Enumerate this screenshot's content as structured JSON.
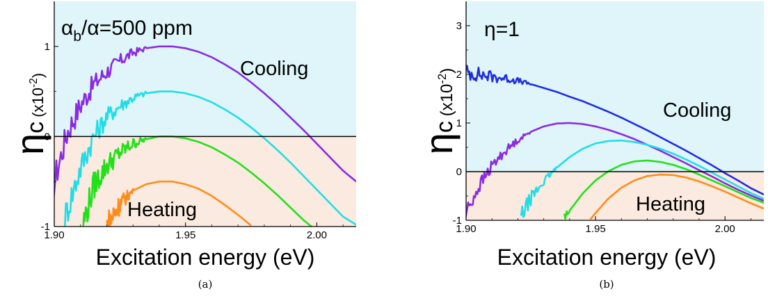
{
  "chart_data": [
    {
      "panel": "a",
      "type": "line",
      "caption": "(a)",
      "annotation": {
        "base": "α",
        "sub": "b",
        "rest": "/α=500 ppm"
      },
      "xlabel": "Excitation energy (eV)",
      "ylabel": {
        "main": "η",
        "sub": "c",
        "unit_prefix": " (x10",
        "unit_exp": "-2",
        "unit_suffix": ")"
      },
      "xlim": [
        1.9,
        2.015
      ],
      "ylim": [
        -1,
        1.5
      ],
      "xticks": [
        "1.90",
        "1.95",
        "2.00"
      ],
      "yticks": [
        "-1",
        "0",
        "1"
      ],
      "regions": {
        "cooling": "Cooling",
        "heating": "Heating"
      },
      "colors": {
        "cooling_bg": "#dff5f9",
        "heating_bg": "#fbeadf"
      },
      "series": [
        {
          "color": "#8a2be2",
          "noise_below": 1.935,
          "x": [
            1.899,
            1.905,
            1.91,
            1.915,
            1.92,
            1.925,
            1.93,
            1.935,
            1.94,
            1.945,
            1.95,
            1.955,
            1.96,
            1.965,
            1.97,
            1.975,
            1.98,
            1.985,
            1.99,
            1.995,
            2.0,
            2.005,
            2.01,
            2.015
          ],
          "y": [
            -0.6,
            0.05,
            0.35,
            0.58,
            0.72,
            0.84,
            0.93,
            0.98,
            1.0,
            1.0,
            0.98,
            0.94,
            0.88,
            0.8,
            0.71,
            0.6,
            0.48,
            0.35,
            0.21,
            0.07,
            -0.08,
            -0.23,
            -0.38,
            -0.5
          ]
        },
        {
          "color": "#22dde6",
          "noise_below": 1.935,
          "x": [
            1.904,
            1.91,
            1.915,
            1.92,
            1.925,
            1.93,
            1.935,
            1.94,
            1.945,
            1.95,
            1.955,
            1.96,
            1.965,
            1.97,
            1.975,
            1.98,
            1.985,
            1.99,
            1.995,
            2.0,
            2.005,
            2.01,
            2.015
          ],
          "y": [
            -0.9,
            -0.35,
            0.0,
            0.22,
            0.34,
            0.43,
            0.48,
            0.5,
            0.5,
            0.48,
            0.44,
            0.38,
            0.3,
            0.21,
            0.1,
            -0.02,
            -0.15,
            -0.29,
            -0.44,
            -0.59,
            -0.74,
            -0.89,
            -0.98
          ]
        },
        {
          "color": "#22e01a",
          "noise_below": 1.935,
          "x": [
            1.911,
            1.915,
            1.92,
            1.925,
            1.93,
            1.935,
            1.94,
            1.945,
            1.95,
            1.955,
            1.96,
            1.965,
            1.97,
            1.975,
            1.98,
            1.985,
            1.99,
            1.995,
            1.998
          ],
          "y": [
            -0.97,
            -0.55,
            -0.32,
            -0.18,
            -0.08,
            -0.03,
            0.0,
            0.0,
            -0.02,
            -0.06,
            -0.12,
            -0.2,
            -0.29,
            -0.4,
            -0.52,
            -0.65,
            -0.79,
            -0.93,
            -1.0
          ]
        },
        {
          "color": "#ff8c1a",
          "noise_below": 1.93,
          "x": [
            1.92,
            1.925,
            1.93,
            1.935,
            1.94,
            1.945,
            1.95,
            1.955,
            1.96,
            1.965,
            1.97,
            1.975
          ],
          "y": [
            -1.0,
            -0.75,
            -0.6,
            -0.53,
            -0.5,
            -0.5,
            -0.53,
            -0.58,
            -0.66,
            -0.76,
            -0.87,
            -0.99
          ]
        }
      ]
    },
    {
      "panel": "b",
      "type": "line",
      "caption": "(b)",
      "annotation": {
        "base": "η",
        "sub": "",
        "rest": "=1"
      },
      "xlabel": "Excitation energy (eV)",
      "ylabel": {
        "main": "η",
        "sub": "c",
        "unit_prefix": " (x10",
        "unit_exp": "-2",
        "unit_suffix": ")"
      },
      "xlim": [
        1.9,
        2.015
      ],
      "ylim": [
        -1,
        3.5
      ],
      "xticks": [
        "1.90",
        "1.95",
        "2.00"
      ],
      "yticks": [
        "-1",
        "0",
        "1",
        "2",
        "3"
      ],
      "regions": {
        "cooling": "Cooling",
        "heating": "Heating"
      },
      "colors": {
        "cooling_bg": "#dff5f9",
        "heating_bg": "#fbeadf"
      },
      "series": [
        {
          "color": "#1f2ee0",
          "noise_below": 1.925,
          "x": [
            1.899,
            1.905,
            1.91,
            1.915,
            1.92,
            1.925,
            1.93,
            1.935,
            1.94,
            1.945,
            1.95,
            1.955,
            1.96,
            1.965,
            1.97,
            1.975,
            1.98,
            1.985,
            1.99,
            1.995,
            2.0,
            2.005,
            2.01,
            2.015
          ],
          "y": [
            2.05,
            2.0,
            1.95,
            1.92,
            1.87,
            1.8,
            1.72,
            1.64,
            1.54,
            1.45,
            1.34,
            1.23,
            1.11,
            0.98,
            0.85,
            0.71,
            0.57,
            0.43,
            0.28,
            0.13,
            -0.03,
            -0.18,
            -0.34,
            -0.47
          ]
        },
        {
          "color": "#8a2be2",
          "noise_below": 1.925,
          "x": [
            1.899,
            1.905,
            1.91,
            1.915,
            1.92,
            1.925,
            1.93,
            1.935,
            1.94,
            1.945,
            1.95,
            1.955,
            1.96,
            1.965,
            1.97,
            1.975,
            1.98,
            1.985,
            1.99,
            1.995,
            2.0,
            2.005,
            2.01,
            2.015
          ],
          "y": [
            -0.95,
            -0.3,
            0.12,
            0.42,
            0.65,
            0.82,
            0.93,
            0.99,
            1.0,
            0.98,
            0.93,
            0.86,
            0.77,
            0.67,
            0.55,
            0.43,
            0.3,
            0.17,
            0.03,
            -0.1,
            -0.24,
            -0.37,
            -0.49,
            -0.6
          ]
        },
        {
          "color": "#22dde6",
          "noise_below": 1.935,
          "x": [
            1.921,
            1.925,
            1.93,
            1.935,
            1.94,
            1.945,
            1.95,
            1.955,
            1.96,
            1.965,
            1.97,
            1.975,
            1.98,
            1.985,
            1.99,
            1.995,
            2.0,
            2.005,
            2.01,
            2.015
          ],
          "y": [
            -0.95,
            -0.55,
            -0.2,
            0.08,
            0.3,
            0.47,
            0.58,
            0.63,
            0.64,
            0.61,
            0.55,
            0.47,
            0.37,
            0.25,
            0.12,
            -0.02,
            -0.16,
            -0.3,
            -0.44,
            -0.56
          ]
        },
        {
          "color": "#22e01a",
          "noise_below": 1.94,
          "x": [
            1.938,
            1.94,
            1.945,
            1.95,
            1.955,
            1.96,
            1.965,
            1.97,
            1.975,
            1.98,
            1.985,
            1.99,
            1.995,
            2.0,
            2.005,
            2.01,
            2.015
          ],
          "y": [
            -1.0,
            -0.8,
            -0.45,
            -0.18,
            0.01,
            0.14,
            0.21,
            0.23,
            0.2,
            0.14,
            0.05,
            -0.06,
            -0.18,
            -0.3,
            -0.42,
            -0.54,
            -0.64
          ]
        },
        {
          "color": "#ff8c1a",
          "noise_below": 1.94,
          "x": [
            1.948,
            1.95,
            1.955,
            1.96,
            1.965,
            1.97,
            1.975,
            1.98,
            1.985,
            1.99,
            1.995,
            2.0,
            2.005,
            2.01,
            2.015
          ],
          "y": [
            -0.98,
            -0.85,
            -0.55,
            -0.33,
            -0.18,
            -0.09,
            -0.06,
            -0.07,
            -0.12,
            -0.2,
            -0.3,
            -0.41,
            -0.53,
            -0.65,
            -0.76
          ]
        }
      ]
    }
  ]
}
